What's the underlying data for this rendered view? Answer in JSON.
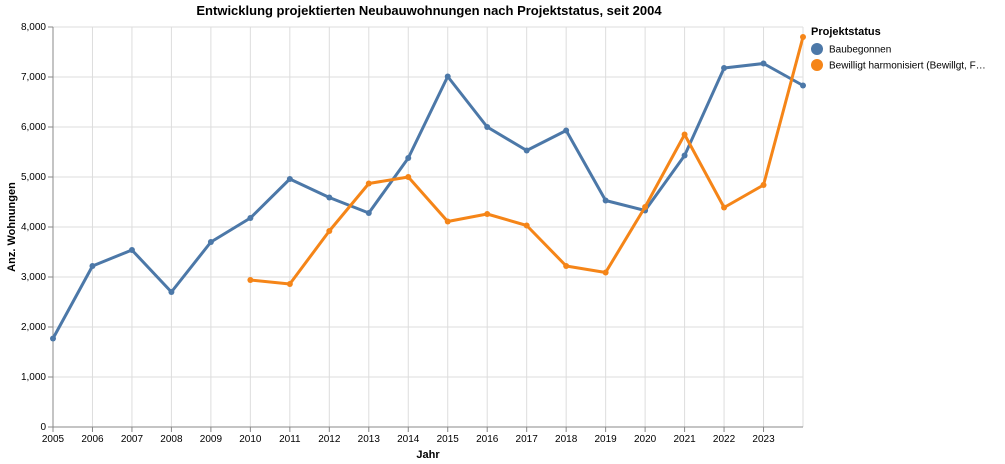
{
  "chart_data": {
    "type": "line",
    "title": "Entwicklung projektierten Neubauwohnungen nach Projektstatus, seit 2004",
    "xlabel": "Jahr",
    "ylabel": "Anz. Wohnungen",
    "xlim": [
      2005,
      2024
    ],
    "ylim": [
      0,
      8000
    ],
    "x_ticks": [
      "2005",
      "2006",
      "2007",
      "2008",
      "2009",
      "2010",
      "2011",
      "2012",
      "2013",
      "2014",
      "2015",
      "2016",
      "2017",
      "2018",
      "2019",
      "2020",
      "2021",
      "2022",
      "2023"
    ],
    "y_ticks": [
      "0",
      "1,000",
      "2,000",
      "3,000",
      "4,000",
      "5,000",
      "6,000",
      "7,000",
      "8,000"
    ],
    "grid": true,
    "legend": {
      "title": "Projektstatus",
      "position": "right",
      "labels": [
        "Baubegonnen",
        "Bewilligt harmonisiert (Bewillgt, F…"
      ]
    },
    "series": [
      {
        "name": "Baubegonnen",
        "color": "#4c78a8",
        "x": [
          2005,
          2006,
          2007,
          2008,
          2009,
          2010,
          2011,
          2012,
          2013,
          2014,
          2015,
          2016,
          2017,
          2018,
          2019,
          2020,
          2021,
          2022,
          2023,
          2024
        ],
        "values": [
          1770,
          3220,
          3540,
          2700,
          3700,
          4180,
          4960,
          4590,
          4280,
          5380,
          7010,
          6000,
          5530,
          5930,
          4530,
          4330,
          5430,
          7180,
          7270,
          6830
        ]
      },
      {
        "name": "Bewilligt harmonisiert (Bewillgt, F…",
        "color": "#f58518",
        "x": [
          2010,
          2011,
          2012,
          2013,
          2014,
          2015,
          2016,
          2017,
          2018,
          2019,
          2020,
          2021,
          2022,
          2023,
          2024
        ],
        "values": [
          2940,
          2860,
          3920,
          4870,
          5000,
          4110,
          4260,
          4030,
          3220,
          3090,
          4400,
          5850,
          4390,
          4840,
          7800
        ]
      }
    ]
  }
}
